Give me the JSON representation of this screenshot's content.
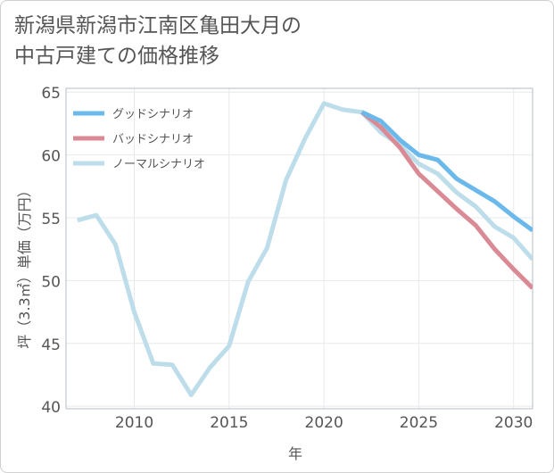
{
  "title_line1": "新潟県新潟市江南区亀田大月の",
  "title_line2": "中古戸建ての価格推移",
  "chart_data": {
    "type": "line",
    "xlabel": "年",
    "ylabel": "坪（3.3㎡）単価（万円）",
    "xlim": [
      2006.4,
      2031
    ],
    "ylim": [
      39.8,
      65.3
    ],
    "x_ticks": [
      2010,
      2015,
      2020,
      2025,
      2030
    ],
    "y_ticks": [
      40,
      45,
      50,
      55,
      60,
      65
    ],
    "x_tick_labels": [
      "2010",
      "2015",
      "2020",
      "2025",
      "2030"
    ],
    "y_tick_labels": [
      "40",
      "45",
      "50",
      "55",
      "60",
      "65"
    ],
    "grid": true,
    "legend_position": "top-left",
    "series": [
      {
        "name": "グッドシナリオ",
        "color": "#6bb8ea",
        "x": [
          2022,
          2023,
          2024,
          2025,
          2026,
          2027,
          2028,
          2029,
          2030,
          2031
        ],
        "values": [
          63.4,
          62.7,
          61.2,
          60.0,
          59.6,
          58.1,
          57.2,
          56.3,
          55.1,
          54.0
        ]
      },
      {
        "name": "バッドシナリオ",
        "color": "#d98a94",
        "x": [
          2022,
          2023,
          2024,
          2025,
          2026,
          2027,
          2028,
          2029,
          2030,
          2031
        ],
        "values": [
          63.4,
          62.2,
          60.6,
          58.5,
          57.1,
          55.7,
          54.4,
          52.5,
          50.9,
          49.4
        ]
      },
      {
        "name": "ノーマルシナリオ",
        "color": "#bcdde9",
        "x": [
          2007,
          2008,
          2009,
          2010,
          2011,
          2012,
          2013,
          2014,
          2015,
          2016,
          2017,
          2018,
          2019,
          2020,
          2021,
          2022,
          2023,
          2024,
          2025,
          2026,
          2027,
          2028,
          2029,
          2030,
          2031
        ],
        "values": [
          54.8,
          55.2,
          52.9,
          47.5,
          43.4,
          43.3,
          40.9,
          43.1,
          44.8,
          49.9,
          52.6,
          58.0,
          61.3,
          64.1,
          63.6,
          63.4,
          61.8,
          60.8,
          59.3,
          58.5,
          57.0,
          55.9,
          54.3,
          53.4,
          51.7
        ]
      }
    ]
  }
}
